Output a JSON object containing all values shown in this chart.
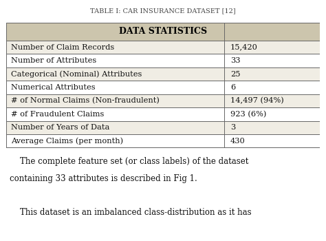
{
  "title": "TABLE I: CAR INSURANCE DATASET [12]",
  "header": "DATA STATISTICS",
  "header_bg": "#ccc5ad",
  "row_bg_light": "#f0ede4",
  "row_bg_white": "#ffffff",
  "border_color": "#666666",
  "rows": [
    [
      "Number of Claim Records",
      "15,420"
    ],
    [
      "Number of Attributes",
      "33"
    ],
    [
      "Categorical (Nominal) Attributes",
      "25"
    ],
    [
      "Numerical Attributes",
      "6"
    ],
    [
      "# of Normal Claims (Non-fraudulent)",
      "14,497 (94%)"
    ],
    [
      "# of Fraudulent Claims",
      "923 (6%)"
    ],
    [
      "Number of Years of Data",
      "3"
    ],
    [
      "Average Claims (per month)",
      "430"
    ]
  ],
  "footer_line1": "    The complete feature set (or class labels) of the dataset",
  "footer_line2": "containing 33 attributes is described in Fig 1.",
  "footer_line3": "",
  "footer_line4": "    This dataset is an imbalanced class-distribution as it has",
  "col_split": 0.695,
  "title_fontsize": 7.0,
  "header_fontsize": 9.0,
  "cell_fontsize": 8.2,
  "footer_fontsize": 8.5,
  "bg_color": "#ffffff"
}
